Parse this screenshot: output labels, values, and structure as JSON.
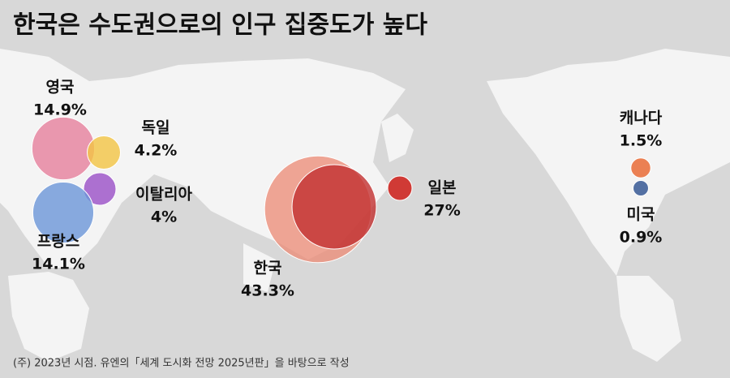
{
  "chart_data": {
    "type": "bubble-map",
    "title": "한국은 수도권으로의 인구 집중도가 높다",
    "note": "(주) 2023년 시점. 유엔의「세계 도시화 전망 2025년판」을 바탕으로 작성",
    "categories": [
      "영국",
      "독일",
      "이탈리아",
      "프랑스",
      "한국",
      "일본",
      "캐나다",
      "미국"
    ],
    "values": [
      14.9,
      4.2,
      4,
      14.1,
      43.3,
      27,
      1.5,
      0.9
    ],
    "value_labels": [
      "14.9%",
      "4.2%",
      "4%",
      "14.1%",
      "43.3%",
      "27%",
      "1.5%",
      "0.9%"
    ],
    "colors": [
      "#e67f9c",
      "#f2c443",
      "#9a4fc7",
      "#6c96d8",
      "#ec8a74",
      "#c2302f",
      "#e8632b",
      "#2b4f8e"
    ]
  }
}
